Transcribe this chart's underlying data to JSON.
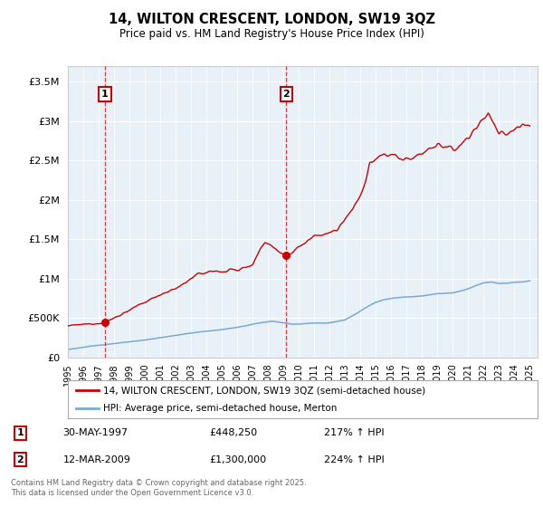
{
  "title": "14, WILTON CRESCENT, LONDON, SW19 3QZ",
  "subtitle": "Price paid vs. HM Land Registry's House Price Index (HPI)",
  "legend_line1": "14, WILTON CRESCENT, LONDON, SW19 3QZ (semi-detached house)",
  "legend_line2": "HPI: Average price, semi-detached house, Merton",
  "footnote": "Contains HM Land Registry data © Crown copyright and database right 2025.\nThis data is licensed under the Open Government Licence v3.0.",
  "table": [
    {
      "num": "1",
      "date": "30-MAY-1997",
      "price": "£448,250",
      "hpi": "217% ↑ HPI"
    },
    {
      "num": "2",
      "date": "12-MAR-2009",
      "price": "£1,300,000",
      "hpi": "224% ↑ HPI"
    }
  ],
  "point1_year": 1997.41,
  "point1_price": 448250,
  "point2_year": 2009.19,
  "point2_price": 1300000,
  "red_color": "#cc0000",
  "blue_color": "#7aaad0",
  "background_color": "#e8f0f8",
  "ylim": [
    0,
    3700000
  ],
  "xlim_start": 1995,
  "xlim_end": 2025.5,
  "yticks": [
    0,
    500000,
    1000000,
    1500000,
    2000000,
    2500000,
    3000000,
    3500000
  ],
  "xticks": [
    1995,
    1996,
    1997,
    1998,
    1999,
    2000,
    2001,
    2002,
    2003,
    2004,
    2005,
    2006,
    2007,
    2008,
    2009,
    2010,
    2011,
    2012,
    2013,
    2014,
    2015,
    2016,
    2017,
    2018,
    2019,
    2020,
    2021,
    2022,
    2023,
    2024,
    2025
  ]
}
